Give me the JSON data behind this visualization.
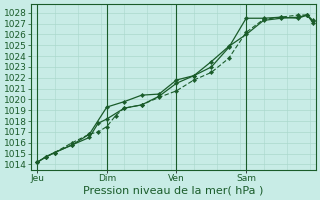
{
  "bg_color": "#c8ece6",
  "grid_color": "#aad8cc",
  "line_color": "#1a5c2a",
  "ylabel_ticks": [
    1014,
    1015,
    1016,
    1017,
    1018,
    1019,
    1020,
    1021,
    1022,
    1023,
    1024,
    1025,
    1026,
    1027,
    1028
  ],
  "ylim": [
    1013.5,
    1028.8
  ],
  "xlabel": "Pression niveau de la mer( hPa )",
  "day_labels": [
    "Jeu",
    "Dim",
    "Ven",
    "Sam"
  ],
  "day_positions": [
    0,
    24,
    48,
    72
  ],
  "xlim": [
    -2,
    96
  ],
  "line1_x": [
    0,
    3,
    6,
    12,
    18,
    24,
    30,
    36,
    42,
    48,
    54,
    60,
    66,
    72,
    78,
    84,
    90,
    93,
    95
  ],
  "line1_y": [
    1014.2,
    1014.7,
    1015.1,
    1015.8,
    1016.8,
    1019.3,
    1019.8,
    1020.4,
    1020.5,
    1021.8,
    1022.2,
    1023.0,
    1024.8,
    1027.5,
    1027.5,
    1027.6,
    1027.5,
    1027.8,
    1027.2
  ],
  "line2_x": [
    0,
    3,
    6,
    12,
    18,
    21,
    24,
    30,
    36,
    42,
    48,
    54,
    60,
    66,
    72,
    78,
    84,
    90,
    93,
    95
  ],
  "line2_y": [
    1014.2,
    1014.7,
    1015.1,
    1015.8,
    1016.5,
    1017.8,
    1018.2,
    1019.2,
    1019.5,
    1020.3,
    1021.5,
    1022.2,
    1023.5,
    1024.9,
    1026.0,
    1027.3,
    1027.5,
    1027.6,
    1027.8,
    1027.1
  ],
  "line3_x": [
    0,
    3,
    6,
    12,
    18,
    21,
    24,
    27,
    30,
    36,
    42,
    48,
    54,
    60,
    66,
    72,
    78,
    84,
    90,
    93,
    95
  ],
  "line3_y": [
    1014.2,
    1014.7,
    1015.1,
    1016.0,
    1016.8,
    1017.0,
    1017.5,
    1018.5,
    1019.2,
    1019.5,
    1020.2,
    1020.8,
    1021.8,
    1022.5,
    1023.8,
    1026.2,
    1027.4,
    1027.6,
    1027.8,
    1027.8,
    1027.3
  ],
  "title_fontsize": 8,
  "tick_fontsize": 6.5
}
